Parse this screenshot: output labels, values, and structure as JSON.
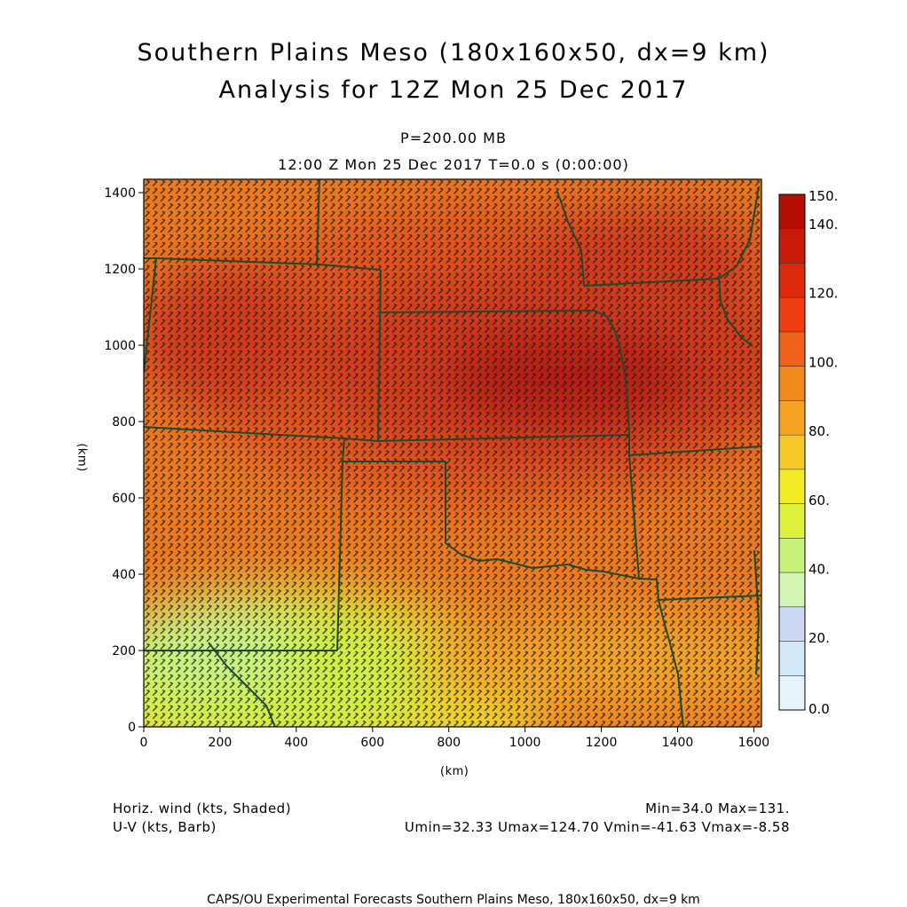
{
  "header": {
    "title_line1": "Southern Plains Meso (180x160x50, dx=9 km)",
    "title_line2": "Analysis for 12Z Mon 25 Dec 2017",
    "level": "P=200.00 MB",
    "valid_time": "12:00 Z Mon 25 Dec 2017   T=0.0 s (0:00:00)"
  },
  "axes": {
    "x_label": "(km)",
    "y_label": "(km)",
    "x_ticks": [
      "0",
      "200",
      "400",
      "600",
      "800",
      "1000",
      "1200",
      "1400",
      "1600"
    ],
    "y_ticks": [
      "0",
      "200",
      "400",
      "600",
      "800",
      "1000",
      "1200",
      "1400"
    ]
  },
  "colorbar": {
    "labels": [
      "150.",
      "140.",
      "120.",
      "100.",
      "80.",
      "60.",
      "40.",
      "20.",
      "0.0"
    ],
    "colors": [
      "#b50e04",
      "#c81a06",
      "#de2a0a",
      "#ef3c10",
      "#f0621a",
      "#f2891f",
      "#f6a222",
      "#f7c928",
      "#f2ec24",
      "#dff23e",
      "#c8f37a",
      "#d4f6b5",
      "#ccd7f4",
      "#d3e8f7",
      "#e7f5fb"
    ]
  },
  "field": {
    "units": "kts",
    "min": 34.0,
    "max": 131,
    "colors": {
      "very_high": "#b51c12",
      "high": "#d13a1a",
      "mid_high": "#e2541c",
      "mid": "#ec7a20",
      "mid_low": "#f3a326",
      "low": "#efd42c",
      "very_low": "#cfef44",
      "lowest": "#c4f38c"
    }
  },
  "legend": {
    "shaded": "Horiz. wind (kts, Shaded)",
    "barb": "U-V (kts, Barb)",
    "minmax": "Min=34.0 Max=131.",
    "uv_stats": "Umin=32.33 Umax=124.70 Vmin=-41.63 Vmax=-8.58"
  },
  "footer": {
    "credit": "CAPS/OU Experimental Forecasts  Southern Plains Meso, 180x160x50, dx=9 km"
  }
}
